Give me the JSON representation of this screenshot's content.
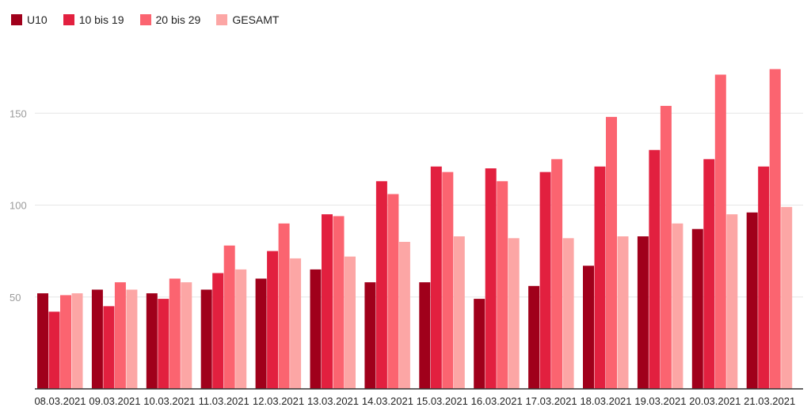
{
  "chart_data": {
    "type": "bar",
    "title": "",
    "xlabel": "",
    "ylabel": "",
    "categories": [
      "08.03.2021",
      "09.03.2021",
      "10.03.2021",
      "11.03.2021",
      "12.03.2021",
      "13.03.2021",
      "14.03.2021",
      "15.03.2021",
      "16.03.2021",
      "17.03.2021",
      "18.03.2021",
      "19.03.2021",
      "20.03.2021",
      "21.03.2021"
    ],
    "series": [
      {
        "name": "U10",
        "color": "#a0001b",
        "values": [
          52,
          54,
          52,
          54,
          60,
          65,
          58,
          58,
          49,
          56,
          67,
          83,
          87,
          96
        ]
      },
      {
        "name": "10 bis 19",
        "color": "#e2203f",
        "values": [
          42,
          45,
          49,
          63,
          75,
          95,
          113,
          121,
          120,
          118,
          121,
          130,
          125,
          121
        ]
      },
      {
        "name": "20 bis 29",
        "color": "#fb6470",
        "values": [
          51,
          58,
          60,
          78,
          90,
          94,
          106,
          118,
          113,
          125,
          148,
          154,
          171,
          174
        ]
      },
      {
        "name": "GESAMT",
        "color": "#fca6a5",
        "values": [
          52,
          54,
          58,
          65,
          71,
          72,
          80,
          83,
          82,
          82,
          83,
          90,
          95,
          99
        ]
      }
    ],
    "yticks": [
      50,
      100,
      150
    ],
    "ylim": [
      0,
      180
    ],
    "grid": true,
    "legend_position": "top-left"
  }
}
